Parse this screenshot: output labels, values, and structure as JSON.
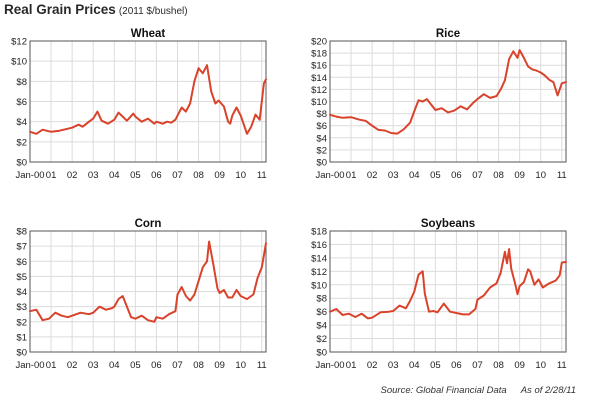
{
  "page": {
    "title": "Real Grain Prices",
    "subtitle": "(2011 $/bushel)",
    "source": "Source:  Global Financial Data",
    "asof": "As of 2/28/11"
  },
  "chart_data": [
    {
      "type": "line",
      "title": "Wheat",
      "x_ticks": [
        "Jan-00",
        "01",
        "02",
        "03",
        "04",
        "05",
        "06",
        "07",
        "08",
        "09",
        "10",
        "11"
      ],
      "x_range": [
        2000.0,
        2011.2
      ],
      "ylim": [
        0,
        12
      ],
      "y_step": 2,
      "y_prefix": "$",
      "grid": true,
      "series": [
        {
          "x": [
            2000.0,
            2000.3,
            2000.6,
            2001.0,
            2001.4,
            2001.8,
            2002.0,
            2002.3,
            2002.5,
            2002.8,
            2003.0,
            2003.2,
            2003.4,
            2003.7,
            2004.0,
            2004.2,
            2004.4,
            2004.6,
            2004.9,
            2005.0,
            2005.3,
            2005.6,
            2005.9,
            2006.0,
            2006.3,
            2006.5,
            2006.7,
            2006.9,
            2007.0,
            2007.2,
            2007.4,
            2007.6,
            2007.8,
            2008.0,
            2008.2,
            2008.4,
            2008.6,
            2008.8,
            2008.95,
            2009.2,
            2009.4,
            2009.5,
            2009.6,
            2009.8,
            2010.0,
            2010.3,
            2010.5,
            2010.7,
            2010.9,
            2011.0,
            2011.1,
            2011.2
          ],
          "y": [
            3.0,
            2.8,
            3.2,
            3.0,
            3.1,
            3.3,
            3.4,
            3.7,
            3.5,
            4.0,
            4.3,
            5.0,
            4.1,
            3.8,
            4.2,
            4.9,
            4.5,
            4.1,
            4.8,
            4.5,
            4.0,
            4.3,
            3.8,
            4.0,
            3.8,
            4.0,
            3.9,
            4.2,
            4.6,
            5.4,
            5.0,
            5.8,
            8.0,
            9.3,
            8.8,
            9.6,
            7.0,
            5.8,
            6.1,
            5.5,
            4.0,
            3.8,
            4.6,
            5.4,
            4.6,
            2.8,
            3.5,
            4.7,
            4.2,
            6.0,
            7.8,
            8.2
          ]
        }
      ]
    },
    {
      "type": "line",
      "title": "Rice",
      "x_ticks": [
        "Jan-00",
        "01",
        "02",
        "03",
        "04",
        "05",
        "06",
        "07",
        "08",
        "09",
        "10",
        "11"
      ],
      "x_range": [
        2000.0,
        2011.2
      ],
      "ylim": [
        0,
        20
      ],
      "y_step": 2,
      "y_prefix": "$",
      "grid": true,
      "series": [
        {
          "x": [
            2000.0,
            2000.3,
            2000.6,
            2001.0,
            2001.4,
            2001.7,
            2002.0,
            2002.3,
            2002.6,
            2002.9,
            2003.2,
            2003.5,
            2003.8,
            2004.0,
            2004.2,
            2004.4,
            2004.6,
            2004.8,
            2005.0,
            2005.3,
            2005.6,
            2005.9,
            2006.2,
            2006.5,
            2006.8,
            2007.0,
            2007.3,
            2007.6,
            2007.9,
            2008.1,
            2008.3,
            2008.5,
            2008.7,
            2008.9,
            2009.0,
            2009.2,
            2009.4,
            2009.6,
            2009.8,
            2010.0,
            2010.2,
            2010.4,
            2010.6,
            2010.8,
            2011.0,
            2011.2
          ],
          "y": [
            7.8,
            7.5,
            7.3,
            7.4,
            7.0,
            6.8,
            6.0,
            5.3,
            5.2,
            4.8,
            4.7,
            5.4,
            6.5,
            8.4,
            10.2,
            10.0,
            10.4,
            9.5,
            8.6,
            8.9,
            8.2,
            8.5,
            9.2,
            8.7,
            9.8,
            10.4,
            11.2,
            10.6,
            10.9,
            12.0,
            13.5,
            17.0,
            18.3,
            17.2,
            18.5,
            17.2,
            15.8,
            15.3,
            15.1,
            14.8,
            14.3,
            13.6,
            13.2,
            11.0,
            13.0,
            13.2
          ]
        }
      ]
    },
    {
      "type": "line",
      "title": "Corn",
      "x_ticks": [
        "Jan-00",
        "01",
        "02",
        "03",
        "04",
        "05",
        "06",
        "07",
        "08",
        "09",
        "10",
        "11"
      ],
      "x_range": [
        2000.0,
        2011.2
      ],
      "ylim": [
        0,
        8
      ],
      "y_step": 1,
      "y_prefix": "$",
      "grid": true,
      "series": [
        {
          "x": [
            2000.0,
            2000.3,
            2000.6,
            2000.9,
            2001.2,
            2001.5,
            2001.8,
            2002.0,
            2002.4,
            2002.8,
            2003.0,
            2003.3,
            2003.6,
            2003.9,
            2004.0,
            2004.2,
            2004.4,
            2004.6,
            2004.8,
            2005.0,
            2005.3,
            2005.6,
            2005.9,
            2006.0,
            2006.3,
            2006.6,
            2006.9,
            2007.0,
            2007.2,
            2007.4,
            2007.6,
            2007.8,
            2008.0,
            2008.2,
            2008.4,
            2008.5,
            2008.7,
            2008.9,
            2009.0,
            2009.2,
            2009.4,
            2009.6,
            2009.8,
            2010.0,
            2010.3,
            2010.6,
            2010.8,
            2011.0,
            2011.2
          ],
          "y": [
            2.7,
            2.8,
            2.1,
            2.2,
            2.6,
            2.4,
            2.3,
            2.4,
            2.6,
            2.5,
            2.6,
            3.0,
            2.8,
            2.9,
            3.0,
            3.5,
            3.7,
            3.0,
            2.3,
            2.2,
            2.4,
            2.1,
            2.0,
            2.3,
            2.2,
            2.5,
            2.7,
            3.8,
            4.3,
            3.7,
            3.4,
            3.8,
            4.7,
            5.6,
            6.0,
            7.3,
            5.8,
            4.2,
            3.9,
            4.1,
            3.6,
            3.6,
            4.1,
            3.7,
            3.5,
            3.8,
            4.9,
            5.6,
            7.2
          ]
        }
      ]
    },
    {
      "type": "line",
      "title": "Soybeans",
      "x_ticks": [
        "Jan-00",
        "01",
        "02",
        "03",
        "04",
        "05",
        "06",
        "07",
        "08",
        "09",
        "10",
        "11"
      ],
      "x_range": [
        2000.0,
        2011.2
      ],
      "ylim": [
        0,
        18
      ],
      "y_step": 2,
      "y_prefix": "$",
      "grid": true,
      "series": [
        {
          "x": [
            2000.0,
            2000.3,
            2000.6,
            2000.9,
            2001.2,
            2001.5,
            2001.8,
            2002.0,
            2002.4,
            2002.8,
            2003.0,
            2003.3,
            2003.6,
            2003.8,
            2004.0,
            2004.2,
            2004.4,
            2004.5,
            2004.7,
            2004.9,
            2005.1,
            2005.4,
            2005.7,
            2006.0,
            2006.3,
            2006.6,
            2006.9,
            2007.0,
            2007.3,
            2007.6,
            2007.9,
            2008.1,
            2008.3,
            2008.4,
            2008.5,
            2008.6,
            2008.8,
            2008.9,
            2009.0,
            2009.2,
            2009.4,
            2009.5,
            2009.7,
            2009.9,
            2010.1,
            2010.4,
            2010.7,
            2010.9,
            2011.0,
            2011.2
          ],
          "y": [
            6.0,
            6.4,
            5.5,
            5.7,
            5.2,
            5.7,
            5.0,
            5.1,
            5.9,
            6.0,
            6.1,
            6.9,
            6.5,
            7.6,
            9.0,
            11.5,
            12.0,
            8.7,
            6.0,
            6.1,
            5.9,
            7.2,
            6.0,
            5.8,
            5.6,
            5.6,
            6.4,
            7.8,
            8.4,
            9.6,
            10.2,
            11.8,
            14.9,
            13.2,
            15.3,
            12.4,
            10.0,
            8.6,
            9.8,
            10.4,
            12.3,
            12.0,
            10.0,
            10.8,
            9.6,
            10.2,
            10.6,
            11.4,
            13.3,
            13.4
          ]
        }
      ]
    }
  ]
}
